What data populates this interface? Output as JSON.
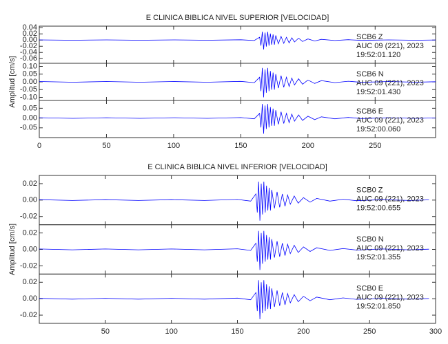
{
  "chart_data": [
    {
      "type": "line",
      "title": "E CLINICA BIBLICA NIVEL SUPERIOR [VELOCIDAD]",
      "ylabel": "Amplitud [cm/s]",
      "xlim": [
        0,
        295
      ],
      "xticks": [
        0,
        50,
        100,
        150,
        200,
        250
      ],
      "x": [
        0,
        25,
        50,
        75,
        100,
        125,
        150,
        160,
        164,
        165,
        166,
        167,
        168,
        169,
        170,
        171,
        172,
        173,
        174,
        175,
        176,
        178,
        180,
        182,
        184,
        186,
        188,
        190,
        193,
        196,
        200,
        205,
        210,
        220,
        230,
        240,
        260,
        280,
        295
      ],
      "series": [
        {
          "name": "SCB6   Z",
          "date": "AUC 09 (221), 2023",
          "time": "19:52:01.120",
          "color": "#0000ff",
          "ylim": [
            -0.075,
            0.045
          ],
          "yticks": [
            0.04,
            0.02,
            {
              "value": 0,
              "label": "0.00"
            },
            -0.02,
            -0.04,
            -0.06
          ],
          "values": [
            0.0006,
            -0.0006,
            0.0006,
            -0.0006,
            0.0006,
            -0.0006,
            0.0009,
            -0.0015,
            0.009,
            -0.018,
            0.027,
            -0.03,
            0.024,
            -0.021,
            0.027,
            -0.018,
            0.021,
            -0.015,
            0.018,
            -0.015,
            0.015,
            -0.012,
            0.012,
            -0.0105,
            0.009,
            -0.009,
            0.0075,
            -0.006,
            0.006,
            -0.0045,
            0.0036,
            -0.003,
            0.0024,
            -0.0015,
            0.0012,
            -0.0009,
            0.0006,
            -0.0006,
            0.0003
          ]
        },
        {
          "name": "SCB6   N",
          "date": "AUC 09 (221), 2023",
          "time": "19:52:01.430",
          "color": "#0000ff",
          "ylim": [
            -0.12,
            0.12
          ],
          "yticks": [
            {
              "value": 0.1,
              "label": "0.10"
            },
            0.05,
            {
              "value": 0,
              "label": "0.00"
            },
            -0.05,
            {
              "value": -0.1,
              "label": "-0.10"
            }
          ],
          "values": [
            0.002,
            -0.002,
            0.002,
            -0.002,
            0.002,
            -0.002,
            0.003,
            -0.005,
            0.03,
            -0.06,
            0.09,
            -0.1,
            0.08,
            -0.07,
            0.09,
            -0.06,
            0.07,
            -0.05,
            0.06,
            -0.05,
            0.05,
            -0.04,
            0.04,
            -0.035,
            0.03,
            -0.03,
            0.025,
            -0.02,
            0.02,
            -0.015,
            0.012,
            -0.01,
            0.008,
            -0.005,
            0.004,
            -0.003,
            0.002,
            -0.002,
            0.001
          ]
        },
        {
          "name": "SCB6   E",
          "date": "AUC 09 (221), 2023",
          "time": "19:52:00.060",
          "color": "#0000ff",
          "ylim": [
            -0.1,
            0.09
          ],
          "yticks": [
            0.05,
            {
              "value": 0,
              "label": "0.00"
            },
            -0.05
          ],
          "values": [
            0.0016,
            -0.0016,
            0.0016,
            -0.0016,
            0.0016,
            -0.0016,
            0.0024,
            -0.004,
            0.024,
            -0.048,
            0.072,
            -0.08,
            0.064,
            -0.056,
            0.072,
            -0.048,
            0.056,
            -0.04,
            0.048,
            -0.04,
            0.04,
            -0.032,
            0.032,
            -0.028,
            0.024,
            -0.024,
            0.02,
            -0.016,
            0.016,
            -0.012,
            0.0096,
            -0.008,
            0.0064,
            -0.004,
            0.0032,
            -0.0024,
            0.0016,
            -0.0016,
            0.0008
          ]
        }
      ]
    },
    {
      "type": "line",
      "title": "E CLINICA BIBLICA NIVEL INFERIOR [VELOCIDAD]",
      "ylabel": "Amplitud [cm/s]",
      "xlim": [
        0,
        300
      ],
      "xticks": [
        50,
        100,
        150,
        200,
        250,
        300
      ],
      "x": [
        0,
        25,
        50,
        75,
        100,
        125,
        150,
        160,
        164,
        165,
        166,
        167,
        168,
        169,
        170,
        171,
        172,
        173,
        174,
        175,
        176,
        178,
        180,
        182,
        184,
        186,
        188,
        190,
        193,
        196,
        200,
        205,
        210,
        220,
        230,
        240,
        260,
        280,
        295
      ],
      "series": [
        {
          "name": "SCB0   Z",
          "date": "AUC 09 (221), 2023",
          "time": "19:52:00.655",
          "color": "#0000ff",
          "ylim": [
            -0.03,
            0.03
          ],
          "yticks": [
            0.02,
            {
              "value": 0,
              "label": "0.00"
            },
            -0.02
          ],
          "values": [
            0.0005,
            -0.0005,
            0.0005,
            -0.0005,
            0.0005,
            -0.0005,
            0.00075,
            -0.00125,
            0.0075,
            -0.015,
            0.0225,
            -0.025,
            0.02,
            -0.0175,
            0.0225,
            -0.015,
            0.0175,
            -0.0125,
            0.015,
            -0.0125,
            0.0125,
            -0.01,
            0.01,
            -0.00875,
            0.0075,
            -0.0075,
            0.00625,
            -0.005,
            0.005,
            -0.00375,
            0.003,
            -0.0025,
            0.002,
            -0.00125,
            0.001,
            -0.00075,
            0.0005,
            -0.0005,
            0.00025
          ]
        },
        {
          "name": "SCB0   N",
          "date": "AUC 09 (221), 2023",
          "time": "19:52:01.355",
          "color": "#0000ff",
          "ylim": [
            -0.03,
            0.03
          ],
          "yticks": [
            0.02,
            {
              "value": 0,
              "label": "0.00"
            },
            -0.02
          ],
          "values": [
            0.0005,
            -0.0005,
            0.0005,
            -0.0005,
            0.0005,
            -0.0005,
            0.00075,
            -0.00125,
            0.0075,
            -0.015,
            0.0225,
            -0.025,
            0.02,
            -0.0175,
            0.0225,
            -0.015,
            0.0175,
            -0.0125,
            0.015,
            -0.0125,
            0.0125,
            -0.01,
            0.01,
            -0.00875,
            0.0075,
            -0.0075,
            0.00625,
            -0.005,
            0.005,
            -0.00375,
            0.003,
            -0.0025,
            0.002,
            -0.00125,
            0.001,
            -0.00075,
            0.0005,
            -0.0005,
            0.00025
          ]
        },
        {
          "name": "SCB0   E",
          "date": "AUC 09 (221), 2023",
          "time": "19:52:01.850",
          "color": "#0000ff",
          "ylim": [
            -0.03,
            0.03
          ],
          "yticks": [
            0.02,
            {
              "value": 0,
              "label": "0.00"
            },
            -0.02
          ],
          "values": [
            0.0005,
            -0.0005,
            0.0005,
            -0.0005,
            0.0005,
            -0.0005,
            0.00075,
            -0.00125,
            0.0075,
            -0.015,
            0.0225,
            -0.025,
            0.02,
            -0.0175,
            0.0225,
            -0.015,
            0.0175,
            -0.0125,
            0.015,
            -0.0125,
            0.0125,
            -0.01,
            0.01,
            -0.00875,
            0.0075,
            -0.0075,
            0.00625,
            -0.005,
            0.005,
            -0.00375,
            0.003,
            -0.0025,
            0.002,
            -0.00125,
            0.001,
            -0.00075,
            0.0005,
            -0.0005,
            0.00025
          ]
        }
      ]
    }
  ]
}
